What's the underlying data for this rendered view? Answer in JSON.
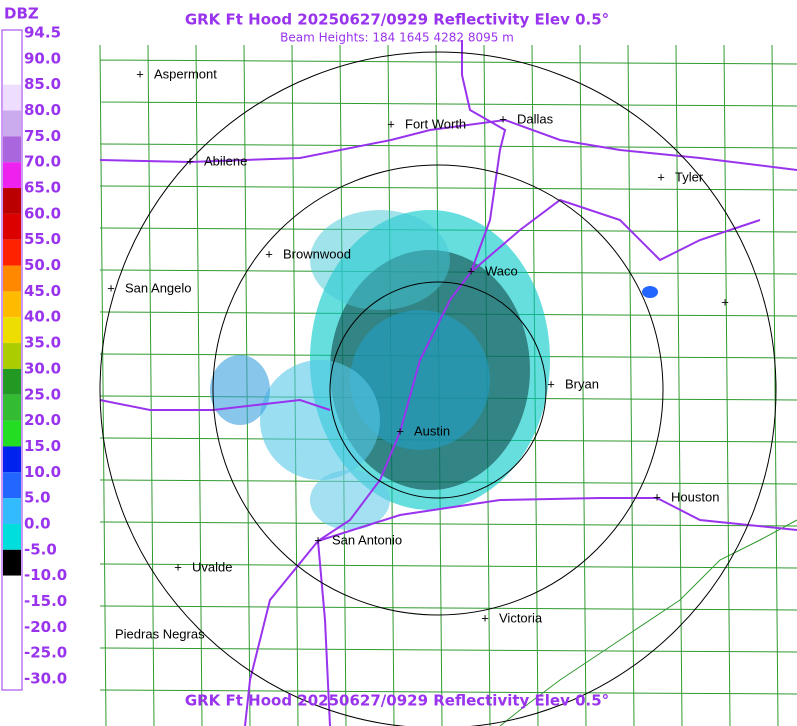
{
  "header": {
    "title": "GRK Ft Hood 20250627/0929 Reflectivity Elev 0.5°",
    "subtitle": "Beam Heights: 184 1645 4282 8095 m",
    "footer": "GRK Ft Hood 20250627/0929 Reflectivity Elev 0.5°"
  },
  "legend": {
    "unit": "DBZ",
    "labels": [
      "94.5",
      "90.0",
      "85.0",
      "80.0",
      "75.0",
      "70.0",
      "65.0",
      "60.0",
      "55.0",
      "50.0",
      "45.0",
      "40.0",
      "35.0",
      "30.0",
      "25.0",
      "20.0",
      "15.0",
      "10.0",
      "5.0",
      "0.0",
      "-5.0",
      "-10.0",
      "-15.0",
      "-20.0",
      "-25.0",
      "-30.0"
    ],
    "colors": [
      "#ffffff",
      "#ffffff",
      "#eeddff",
      "#ccaaee",
      "#aa66dd",
      "#ee22ee",
      "#bb0000",
      "#dd0000",
      "#ff2200",
      "#ff8800",
      "#ffbb00",
      "#eedd00",
      "#aacc00",
      "#229922",
      "#33bb33",
      "#22dd22",
      "#0022ee",
      "#2266ff",
      "#33bbff",
      "#00dddd",
      "#000000",
      "#ffffff",
      "#ffffff",
      "#ffffff",
      "#ffffff"
    ]
  },
  "cities": [
    "Aspermont",
    "Fort Worth",
    "Dallas",
    "Abilene",
    "Tyler",
    "Brownwood",
    "Waco",
    "San Angelo",
    "Bryan",
    "Austin",
    "Houston",
    "San Antonio",
    "Uvalde",
    "Victoria",
    "Piedras Negras"
  ]
}
